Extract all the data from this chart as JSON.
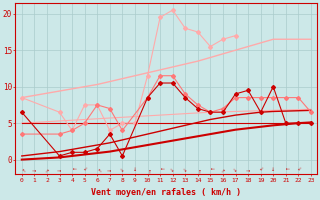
{
  "x": [
    0,
    1,
    2,
    3,
    4,
    5,
    6,
    7,
    8,
    9,
    10,
    11,
    12,
    13,
    14,
    15,
    16,
    17,
    18,
    19,
    20,
    21,
    22,
    23
  ],
  "line_dark_main": [
    6.5,
    null,
    null,
    0.5,
    1.0,
    1.0,
    1.5,
    3.5,
    0.5,
    null,
    8.5,
    10.5,
    10.5,
    8.5,
    7.0,
    6.5,
    6.5,
    9.0,
    9.5,
    6.5,
    10.0,
    5.0,
    5.0,
    5.0
  ],
  "line_light_upper": [
    8.5,
    null,
    null,
    6.5,
    4.0,
    7.5,
    7.5,
    4.0,
    5.0,
    5.0,
    11.5,
    19.5,
    20.5,
    18.0,
    17.5,
    15.5,
    16.5,
    17.0,
    null,
    null,
    null,
    null,
    null,
    null
  ],
  "line_light_lower": [
    3.5,
    null,
    null,
    3.5,
    4.0,
    5.0,
    7.5,
    7.0,
    4.0,
    null,
    8.5,
    11.5,
    11.5,
    9.0,
    7.5,
    6.5,
    7.0,
    8.5,
    8.5,
    8.5,
    8.5,
    8.5,
    8.5,
    6.5
  ],
  "trend_light_upper": [
    8.5,
    8.8,
    9.1,
    9.4,
    9.7,
    10.0,
    10.3,
    10.7,
    11.1,
    11.5,
    11.9,
    12.3,
    12.7,
    13.1,
    13.5,
    14.0,
    14.5,
    15.0,
    15.5,
    16.0,
    16.5,
    16.5,
    16.5,
    16.5
  ],
  "trend_light_lower": [
    5.0,
    5.1,
    5.2,
    5.3,
    5.4,
    5.5,
    5.6,
    5.7,
    5.8,
    5.9,
    6.0,
    6.1,
    6.2,
    6.3,
    6.4,
    6.5,
    6.55,
    6.6,
    6.65,
    6.7,
    6.75,
    6.8,
    6.85,
    6.9
  ],
  "trend_dark_upper": [
    0.5,
    0.7,
    0.9,
    1.1,
    1.4,
    1.7,
    2.0,
    2.3,
    2.7,
    3.1,
    3.5,
    3.9,
    4.3,
    4.7,
    5.1,
    5.5,
    5.8,
    6.1,
    6.3,
    6.5,
    6.6,
    6.65,
    6.7,
    6.75
  ],
  "trend_dark_lower": [
    0.0,
    0.1,
    0.2,
    0.3,
    0.5,
    0.7,
    0.9,
    1.1,
    1.4,
    1.7,
    2.0,
    2.3,
    2.6,
    2.9,
    3.2,
    3.5,
    3.8,
    4.1,
    4.3,
    4.5,
    4.7,
    4.85,
    5.0,
    5.1
  ],
  "line_dark_flat": [
    5.0,
    5.0,
    5.0,
    5.0,
    5.0,
    5.0,
    5.0,
    5.0,
    5.0,
    5.0,
    5.0,
    5.0,
    5.0,
    5.0,
    5.0,
    5.0,
    5.0,
    5.0,
    5.0,
    5.0,
    5.0,
    5.0,
    5.0,
    5.0
  ],
  "xlabel": "Vent moyen/en rafales ( km/h )",
  "ylim": [
    -2.0,
    21.5
  ],
  "xlim": [
    -0.5,
    23.5
  ],
  "bg_color": "#cce8e8",
  "grid_color": "#aacccc",
  "dark_red": "#cc0000",
  "light_red": "#ffaaaa",
  "medium_red": "#ff7777"
}
